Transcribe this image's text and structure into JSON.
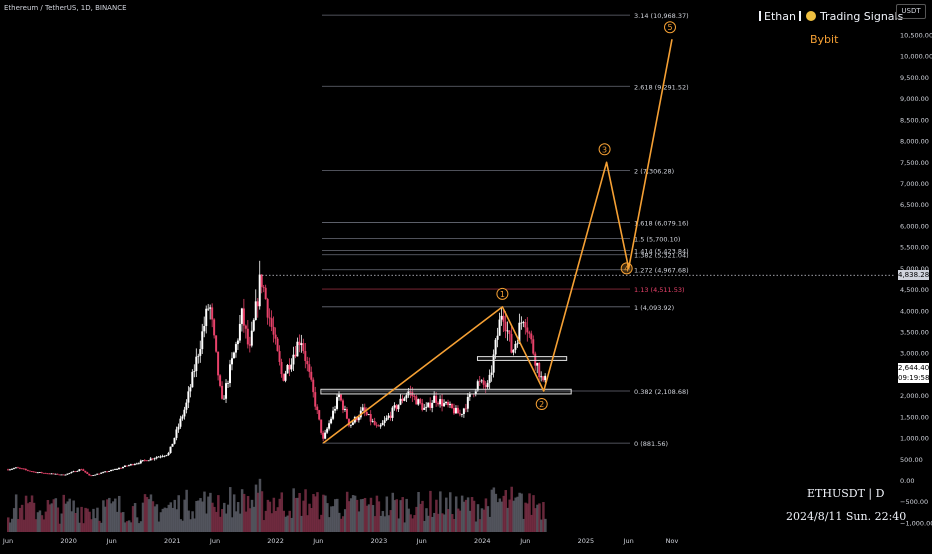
{
  "header": {
    "symbol": "Ethereum / TetherUS, 1D, BINANCE",
    "brand_name": "Ethan",
    "brand_tagline": "Trading Signals",
    "exchange": "Bybit",
    "currency": "USDT"
  },
  "footer": {
    "pair": "ETHUSDT | D",
    "datetime": "2024/8/11 Sun. 22:40"
  },
  "price_tags": {
    "reference_line": "4,838.28",
    "last_price": "2,644.40",
    "countdown": "09:19:58"
  },
  "colors": {
    "background": "#000000",
    "wave": "#f5a034",
    "candle_up": "#ffffff",
    "candle_down": "#e8426a",
    "fib_line": "#6a6d78",
    "fib_label": "#d1d4dc",
    "fib_label_highlight": "#e8426a"
  },
  "chart_data": {
    "type": "candlestick",
    "y_axis": {
      "min": -1000,
      "max": 10500,
      "ticks": [
        {
          "value": 10500,
          "label": "10,500.00"
        },
        {
          "value": 10000,
          "label": "10,000.00"
        },
        {
          "value": 9500,
          "label": "9,500.00"
        },
        {
          "value": 9000,
          "label": "9,000.00"
        },
        {
          "value": 8500,
          "label": "8,500.00"
        },
        {
          "value": 8000,
          "label": "8,000.00"
        },
        {
          "value": 7500,
          "label": "7,500.00"
        },
        {
          "value": 7000,
          "label": "7,000.00"
        },
        {
          "value": 6500,
          "label": "6,500.00"
        },
        {
          "value": 6000,
          "label": "6,000.00"
        },
        {
          "value": 5500,
          "label": "5,500.00"
        },
        {
          "value": 5000,
          "label": "5,000.00"
        },
        {
          "value": 4500,
          "label": "4,500.00"
        },
        {
          "value": 4000,
          "label": "4,000.00"
        },
        {
          "value": 3500,
          "label": "3,500.00"
        },
        {
          "value": 3000,
          "label": "3,000.00"
        },
        {
          "value": 2000,
          "label": "2,000.00"
        },
        {
          "value": 1500,
          "label": "1,500.00"
        },
        {
          "value": 1000,
          "label": "1,000.00"
        },
        {
          "value": 500,
          "label": "500.00"
        },
        {
          "value": 0,
          "label": "0.00"
        },
        {
          "value": -500,
          "label": "−500.00"
        },
        {
          "value": -1000,
          "label": "−1,000.00"
        }
      ]
    },
    "x_axis": {
      "start": "2019-06-01",
      "end": "2025-12-01",
      "ticks": [
        {
          "date": "2019-06-01",
          "label": "Jun"
        },
        {
          "date": "2020-01-01",
          "label": "2020"
        },
        {
          "date": "2020-06-01",
          "label": "Jun"
        },
        {
          "date": "2021-01-01",
          "label": "2021"
        },
        {
          "date": "2021-06-01",
          "label": "Jun"
        },
        {
          "date": "2022-01-01",
          "label": "2022"
        },
        {
          "date": "2022-06-01",
          "label": "Jun"
        },
        {
          "date": "2023-01-01",
          "label": "2023"
        },
        {
          "date": "2023-06-01",
          "label": "Jun"
        },
        {
          "date": "2024-01-01",
          "label": "2024"
        },
        {
          "date": "2024-06-01",
          "label": "Jun"
        },
        {
          "date": "2025-01-01",
          "label": "2025"
        },
        {
          "date": "2025-06-01",
          "label": "Jun"
        },
        {
          "date": "2025-11-01",
          "label": "Nov"
        }
      ]
    },
    "price_path": [
      {
        "date": "2019-06-01",
        "price": 260
      },
      {
        "date": "2019-07-01",
        "price": 300
      },
      {
        "date": "2019-09-01",
        "price": 200
      },
      {
        "date": "2019-12-15",
        "price": 130
      },
      {
        "date": "2020-02-15",
        "price": 270
      },
      {
        "date": "2020-03-15",
        "price": 110
      },
      {
        "date": "2020-06-01",
        "price": 240
      },
      {
        "date": "2020-09-01",
        "price": 420
      },
      {
        "date": "2020-12-20",
        "price": 640
      },
      {
        "date": "2021-02-20",
        "price": 1800
      },
      {
        "date": "2021-05-12",
        "price": 4200
      },
      {
        "date": "2021-06-25",
        "price": 1800
      },
      {
        "date": "2021-08-15",
        "price": 3200
      },
      {
        "date": "2021-09-05",
        "price": 3900
      },
      {
        "date": "2021-10-01",
        "price": 3000
      },
      {
        "date": "2021-11-10",
        "price": 4830
      },
      {
        "date": "2022-01-25",
        "price": 2400
      },
      {
        "date": "2022-03-31",
        "price": 3400
      },
      {
        "date": "2022-05-15",
        "price": 2000
      },
      {
        "date": "2022-06-18",
        "price": 950
      },
      {
        "date": "2022-08-13",
        "price": 2000
      },
      {
        "date": "2022-09-20",
        "price": 1300
      },
      {
        "date": "2022-11-05",
        "price": 1650
      },
      {
        "date": "2022-12-30",
        "price": 1200
      },
      {
        "date": "2023-04-15",
        "price": 2100
      },
      {
        "date": "2023-06-15",
        "price": 1650
      },
      {
        "date": "2023-07-15",
        "price": 1950
      },
      {
        "date": "2023-10-15",
        "price": 1550
      },
      {
        "date": "2023-12-15",
        "price": 2300
      },
      {
        "date": "2024-01-23",
        "price": 2200
      },
      {
        "date": "2024-03-12",
        "price": 4093
      },
      {
        "date": "2024-04-15",
        "price": 3000
      },
      {
        "date": "2024-05-27",
        "price": 3950
      },
      {
        "date": "2024-07-05",
        "price": 2900
      },
      {
        "date": "2024-08-05",
        "price": 2200
      },
      {
        "date": "2024-08-11",
        "price": 2644
      }
    ],
    "fib_levels": [
      {
        "ratio": "0",
        "price": 881.56,
        "label": "0 (881.56)",
        "highlight": false
      },
      {
        "ratio": "0.382",
        "price": 2108.68,
        "label": "0.382 (2,108.68)",
        "highlight": false
      },
      {
        "ratio": "1",
        "price": 4093.92,
        "label": "1 (4,093.92)",
        "highlight": false
      },
      {
        "ratio": "1.13",
        "price": 4511.53,
        "label": "1.13 (4,511.53)",
        "highlight": true
      },
      {
        "ratio": "1.272",
        "price": 4967.68,
        "label": "1.272 (4,967.68)",
        "highlight": false
      },
      {
        "ratio": "1.382",
        "price": 5321.04,
        "label": "1.382 (5,321.04)",
        "highlight": false
      },
      {
        "ratio": "1.414",
        "price": 5423.84,
        "label": "1.414 (5,423.84)",
        "highlight": false
      },
      {
        "ratio": "1.5",
        "price": 5700.1,
        "label": "1.5 (5,700.10)",
        "highlight": false
      },
      {
        "ratio": "1.618",
        "price": 6079.16,
        "label": "1.618 (6,079.16)",
        "highlight": false
      },
      {
        "ratio": "2",
        "price": 7306.28,
        "label": "2 (7,306.28)",
        "highlight": false
      },
      {
        "ratio": "2.618",
        "price": 9291.52,
        "label": "2.618 (9,291.52)",
        "highlight": false
      },
      {
        "ratio": "3.14",
        "price": 10968.37,
        "label": "3.14 (10,968.37)",
        "highlight": false
      }
    ],
    "wave_path": [
      {
        "date": "2022-06-18",
        "price": 881,
        "label": ""
      },
      {
        "date": "2024-03-12",
        "price": 4093,
        "label": "1"
      },
      {
        "date": "2024-08-05",
        "price": 2108,
        "label": "2"
      },
      {
        "date": "2025-03-15",
        "price": 7500,
        "label": "3"
      },
      {
        "date": "2025-06-01",
        "price": 5000,
        "label": "4"
      },
      {
        "date": "2025-11-01",
        "price": 10400,
        "label": "5"
      }
    ],
    "zones": [
      {
        "name": "support",
        "from": "2022-06-10",
        "to": "2024-11-10",
        "low": 2040,
        "high": 2150
      },
      {
        "name": "resistance",
        "from": "2023-12-15",
        "to": "2024-10-25",
        "low": 2830,
        "high": 2920
      }
    ],
    "reference_level": 4838.28,
    "last_price": 2644.4
  }
}
